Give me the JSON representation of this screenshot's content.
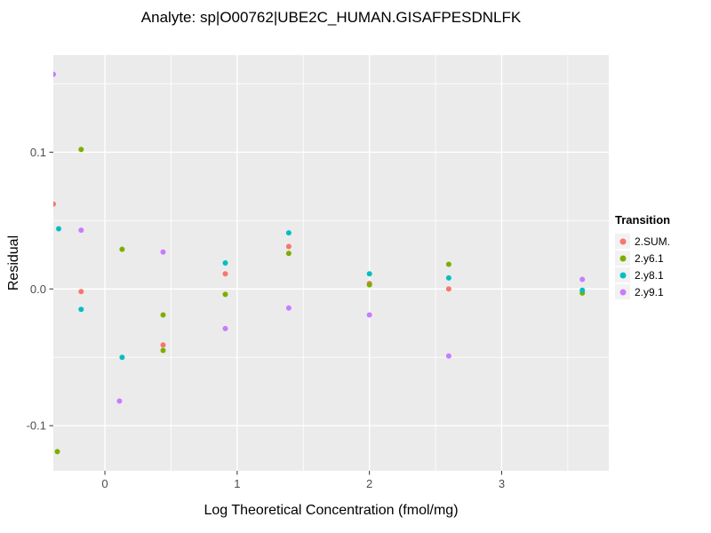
{
  "title": "Analyte: sp|O00762|UBE2C_HUMAN.GISAFPESDNLFK",
  "chart_data": {
    "type": "scatter",
    "title": "Analyte: sp|O00762|UBE2C_HUMAN.GISAFPESDNLFK",
    "xlabel": "Log Theoretical Concentration (fmol/mg)",
    "ylabel": "Residual",
    "xlim": [
      -0.39,
      3.81
    ],
    "ylim": [
      -0.133,
      0.171
    ],
    "x_ticks": [
      0,
      1,
      2,
      3
    ],
    "x_tick_labels": [
      "0",
      "1",
      "2",
      "3"
    ],
    "x_minor_ticks": [
      0.5,
      1.5,
      2.5,
      3.5
    ],
    "y_ticks": [
      -0.1,
      0.0,
      0.1
    ],
    "y_tick_labels": [
      "-0.1",
      "0.0",
      "0.1"
    ],
    "y_minor_ticks": [
      -0.05,
      0.05,
      0.15
    ],
    "grid": true,
    "panel_background": "#EBEBEB",
    "grid_color": "#FFFFFF",
    "tick_label_color": "#4D4D4D",
    "legend": {
      "title": "Transition",
      "position": "right"
    },
    "series": [
      {
        "name": "2.SUM.",
        "color": "#F8766D",
        "points": [
          [
            -0.39,
            0.062
          ],
          [
            -0.18,
            -0.002
          ],
          [
            0.44,
            -0.041
          ],
          [
            0.91,
            0.011
          ],
          [
            1.39,
            0.031
          ],
          [
            2.0,
            0.004
          ],
          [
            2.6,
            0.0
          ]
        ]
      },
      {
        "name": "2.y6.1",
        "color": "#7CAE00",
        "points": [
          [
            -0.36,
            -0.119
          ],
          [
            -0.18,
            0.102
          ],
          [
            0.13,
            0.029
          ],
          [
            0.44,
            -0.019
          ],
          [
            0.44,
            -0.045
          ],
          [
            0.91,
            -0.004
          ],
          [
            1.39,
            0.026
          ],
          [
            2.0,
            0.003
          ],
          [
            2.6,
            0.018
          ],
          [
            3.61,
            -0.003
          ]
        ]
      },
      {
        "name": "2.y8.1",
        "color": "#00BFC4",
        "points": [
          [
            -0.35,
            0.044
          ],
          [
            -0.18,
            -0.015
          ],
          [
            0.13,
            -0.05
          ],
          [
            0.91,
            0.019
          ],
          [
            1.39,
            0.041
          ],
          [
            2.0,
            0.011
          ],
          [
            2.6,
            0.008
          ],
          [
            3.61,
            -0.001
          ]
        ]
      },
      {
        "name": "2.y9.1",
        "color": "#C77CFF",
        "points": [
          [
            -0.39,
            0.157
          ],
          [
            -0.18,
            0.043
          ],
          [
            0.11,
            -0.082
          ],
          [
            0.44,
            0.027
          ],
          [
            0.91,
            -0.029
          ],
          [
            1.39,
            -0.014
          ],
          [
            2.0,
            -0.019
          ],
          [
            2.6,
            -0.049
          ],
          [
            3.61,
            0.007
          ]
        ]
      }
    ]
  }
}
